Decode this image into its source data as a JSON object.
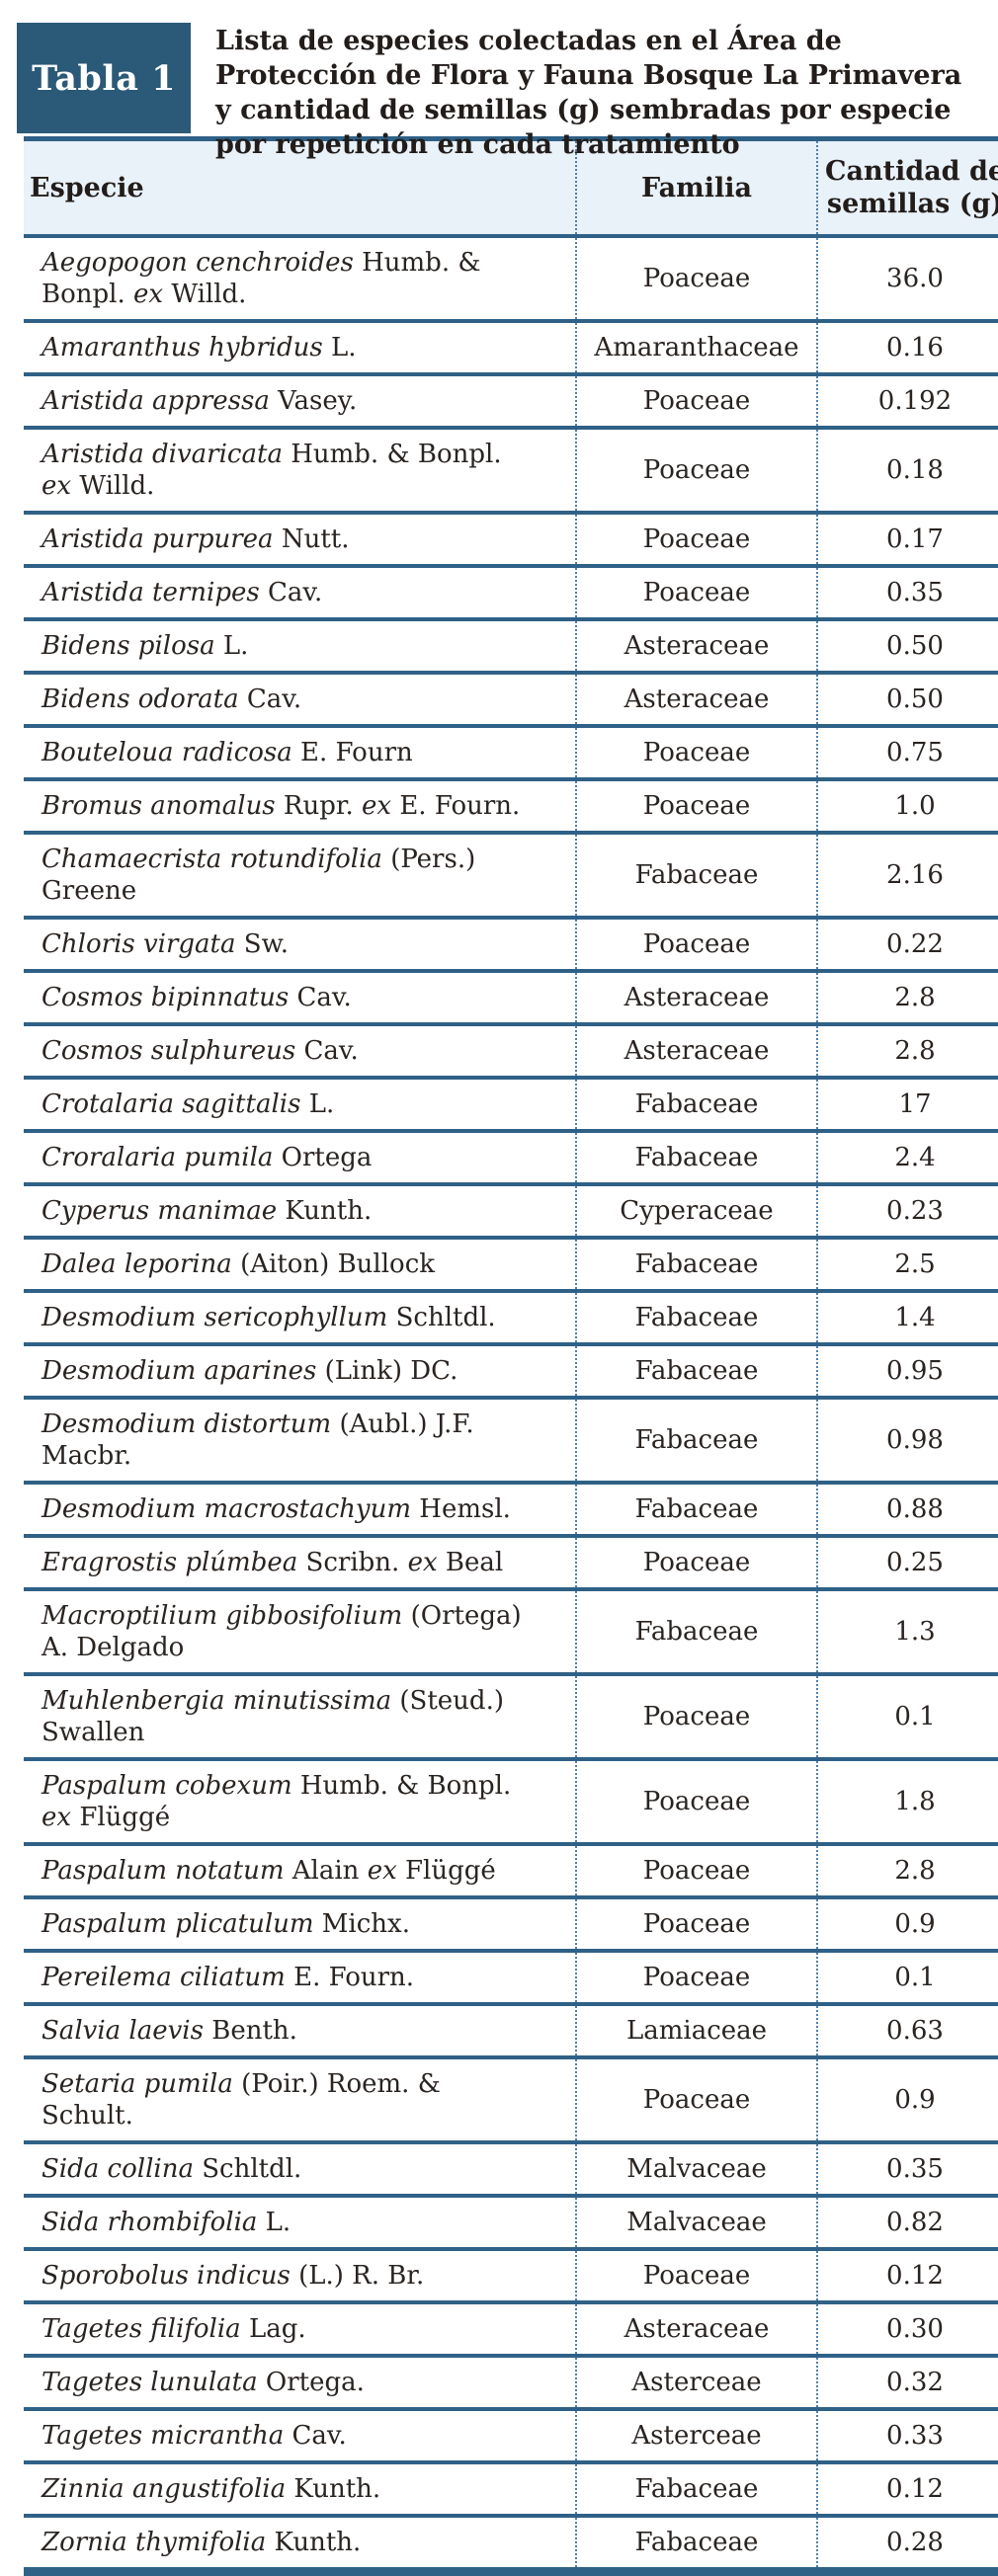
{
  "badge_label": "Tabla 1",
  "title": "Lista de especies colectadas en el Área de Protección de Flora y Fauna Bosque La Primavera y cantidad de semillas (g) sembradas por especie por repetición en cada tratamiento",
  "columns": {
    "especie": "Especie",
    "familia": "Familia",
    "cantidad": "Cantidad de semillas (g)"
  },
  "colors": {
    "badge_blue": "#2b5978",
    "rule_blue": "#2f6187",
    "dotted_divider_blue": "#4f81a8",
    "header_bg": "#e9f1f9",
    "text": "#2a2421"
  },
  "rows": [
    {
      "species": [
        [
          "i",
          "Aegopogon cenchroides"
        ],
        [
          "n",
          " Humb. & Bonpl. "
        ],
        [
          "i",
          "ex"
        ],
        [
          "n",
          " Willd."
        ]
      ],
      "family": "Poaceae",
      "seeds_g": "36.0"
    },
    {
      "species": [
        [
          "i",
          "Amaranthus hybridus"
        ],
        [
          "n",
          " L."
        ]
      ],
      "family": "Amaranthaceae",
      "seeds_g": "0.16"
    },
    {
      "species": [
        [
          "i",
          "Aristida appressa"
        ],
        [
          "n",
          " Vasey."
        ]
      ],
      "family": "Poaceae",
      "seeds_g": "0.192"
    },
    {
      "species": [
        [
          "i",
          "Aristida divaricata"
        ],
        [
          "n",
          " Humb. & Bonpl. "
        ],
        [
          "i",
          "ex"
        ],
        [
          "n",
          " Willd."
        ]
      ],
      "family": "Poaceae",
      "seeds_g": "0.18"
    },
    {
      "species": [
        [
          "i",
          "Aristida purpurea"
        ],
        [
          "n",
          " Nutt."
        ]
      ],
      "family": "Poaceae",
      "seeds_g": "0.17"
    },
    {
      "species": [
        [
          "i",
          "Aristida ternipes"
        ],
        [
          "n",
          " Cav."
        ]
      ],
      "family": "Poaceae",
      "seeds_g": "0.35"
    },
    {
      "species": [
        [
          "i",
          "Bidens pilosa"
        ],
        [
          "n",
          " L."
        ]
      ],
      "family": "Asteraceae",
      "seeds_g": "0.50"
    },
    {
      "species": [
        [
          "i",
          "Bidens odorata"
        ],
        [
          "n",
          " Cav."
        ]
      ],
      "family": "Asteraceae",
      "seeds_g": "0.50"
    },
    {
      "species": [
        [
          "i",
          "Bouteloua radicosa"
        ],
        [
          "n",
          " E. Fourn"
        ]
      ],
      "family": "Poaceae",
      "seeds_g": "0.75"
    },
    {
      "species": [
        [
          "i",
          "Bromus anomalus"
        ],
        [
          "n",
          " Rupr. "
        ],
        [
          "i",
          "ex"
        ],
        [
          "n",
          " E. Fourn."
        ]
      ],
      "family": "Poaceae",
      "seeds_g": "1.0"
    },
    {
      "species": [
        [
          "i",
          "Chamaecrista rotundifolia"
        ],
        [
          "n",
          " (Pers.) Greene"
        ]
      ],
      "family": "Fabaceae",
      "seeds_g": "2.16"
    },
    {
      "species": [
        [
          "i",
          "Chloris virgata"
        ],
        [
          "n",
          " Sw."
        ]
      ],
      "family": "Poaceae",
      "seeds_g": "0.22"
    },
    {
      "species": [
        [
          "i",
          "Cosmos bipinnatus"
        ],
        [
          "n",
          " Cav."
        ]
      ],
      "family": "Asteraceae",
      "seeds_g": "2.8"
    },
    {
      "species": [
        [
          "i",
          "Cosmos sulphureus"
        ],
        [
          "n",
          " Cav."
        ]
      ],
      "family": "Asteraceae",
      "seeds_g": "2.8"
    },
    {
      "species": [
        [
          "i",
          "Crotalaria sagittalis"
        ],
        [
          "n",
          " L."
        ]
      ],
      "family": "Fabaceae",
      "seeds_g": "17"
    },
    {
      "species": [
        [
          "i",
          "Croralaria pumila"
        ],
        [
          "n",
          " Ortega"
        ]
      ],
      "family": "Fabaceae",
      "seeds_g": "2.4"
    },
    {
      "species": [
        [
          "i",
          "Cyperus manimae"
        ],
        [
          "n",
          " Kunth."
        ]
      ],
      "family": "Cyperaceae",
      "seeds_g": "0.23"
    },
    {
      "species": [
        [
          "i",
          "Dalea leporina"
        ],
        [
          "n",
          " (Aiton) Bullock"
        ]
      ],
      "family": "Fabaceae",
      "seeds_g": "2.5"
    },
    {
      "species": [
        [
          "i",
          "Desmodium sericophyllum"
        ],
        [
          "n",
          " Schltdl."
        ]
      ],
      "family": "Fabaceae",
      "seeds_g": "1.4"
    },
    {
      "species": [
        [
          "i",
          "Desmodium aparines"
        ],
        [
          "n",
          " (Link) DC."
        ]
      ],
      "family": "Fabaceae",
      "seeds_g": "0.95"
    },
    {
      "species": [
        [
          "i",
          "Desmodium distortum"
        ],
        [
          "n",
          " (Aubl.) J.F. Macbr."
        ]
      ],
      "family": "Fabaceae",
      "seeds_g": "0.98"
    },
    {
      "species": [
        [
          "i",
          "Desmodium macrostachyum"
        ],
        [
          "n",
          " Hemsl."
        ]
      ],
      "family": "Fabaceae",
      "seeds_g": "0.88"
    },
    {
      "species": [
        [
          "i",
          "Eragrostis plúmbea"
        ],
        [
          "n",
          " Scribn. "
        ],
        [
          "i",
          "ex"
        ],
        [
          "n",
          " Beal"
        ]
      ],
      "family": "Poaceae",
      "seeds_g": "0.25"
    },
    {
      "species": [
        [
          "i",
          "Macroptilium gibbosifolium"
        ],
        [
          "n",
          " (Ortega) A. Delgado"
        ]
      ],
      "family": "Fabaceae",
      "seeds_g": "1.3"
    },
    {
      "species": [
        [
          "i",
          "Muhlenbergia minutissima"
        ],
        [
          "n",
          " (Steud.) Swallen"
        ]
      ],
      "family": "Poaceae",
      "seeds_g": "0.1"
    },
    {
      "species": [
        [
          "i",
          "Paspalum cobexum"
        ],
        [
          "n",
          " Humb. & Bonpl. "
        ],
        [
          "i",
          "ex"
        ],
        [
          "n",
          " Flüggé"
        ]
      ],
      "family": "Poaceae",
      "seeds_g": "1.8"
    },
    {
      "species": [
        [
          "i",
          "Paspalum notatum"
        ],
        [
          "n",
          " Alain "
        ],
        [
          "i",
          "ex"
        ],
        [
          "n",
          " Flüggé"
        ]
      ],
      "family": "Poaceae",
      "seeds_g": "2.8"
    },
    {
      "species": [
        [
          "i",
          "Paspalum plicatulum"
        ],
        [
          "n",
          " Michx."
        ]
      ],
      "family": "Poaceae",
      "seeds_g": "0.9"
    },
    {
      "species": [
        [
          "i",
          "Pereilema ciliatum"
        ],
        [
          "n",
          " E. Fourn."
        ]
      ],
      "family": "Poaceae",
      "seeds_g": "0.1"
    },
    {
      "species": [
        [
          "i",
          "Salvia laevis"
        ],
        [
          "n",
          " Benth."
        ]
      ],
      "family": "Lamiaceae",
      "seeds_g": "0.63"
    },
    {
      "species": [
        [
          "i",
          "Setaria pumila"
        ],
        [
          "n",
          " (Poir.) Roem. & Schult."
        ]
      ],
      "family": "Poaceae",
      "seeds_g": "0.9"
    },
    {
      "species": [
        [
          "i",
          "Sida collina"
        ],
        [
          "n",
          " Schltdl."
        ]
      ],
      "family": "Malvaceae",
      "seeds_g": "0.35"
    },
    {
      "species": [
        [
          "i",
          "Sida rhombifolia"
        ],
        [
          "n",
          " L."
        ]
      ],
      "family": "Malvaceae",
      "seeds_g": "0.82"
    },
    {
      "species": [
        [
          "i",
          "Sporobolus indicus"
        ],
        [
          "n",
          " (L.) R. Br."
        ]
      ],
      "family": "Poaceae",
      "seeds_g": "0.12"
    },
    {
      "species": [
        [
          "i",
          "Tagetes filifolia"
        ],
        [
          "n",
          " Lag."
        ]
      ],
      "family": "Asteraceae",
      "seeds_g": "0.30"
    },
    {
      "species": [
        [
          "i",
          "Tagetes lunulata"
        ],
        [
          "n",
          " Ortega."
        ]
      ],
      "family": "Asterceae",
      "seeds_g": "0.32"
    },
    {
      "species": [
        [
          "i",
          "Tagetes micrantha"
        ],
        [
          "n",
          " Cav."
        ]
      ],
      "family": "Asterceae",
      "seeds_g": "0.33"
    },
    {
      "species": [
        [
          "i",
          "Zinnia angustifolia"
        ],
        [
          "n",
          " Kunth."
        ]
      ],
      "family": "Fabaceae",
      "seeds_g": "0.12"
    },
    {
      "species": [
        [
          "i",
          "Zornia thymifolia"
        ],
        [
          "n",
          " Kunth."
        ]
      ],
      "family": "Fabaceae",
      "seeds_g": "0.28"
    }
  ]
}
